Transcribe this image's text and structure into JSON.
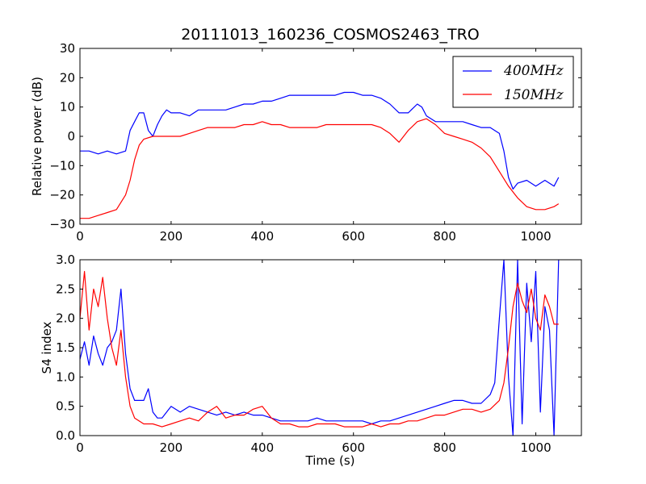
{
  "chart_data": [
    {
      "type": "line",
      "title": "20111013_160236_COSMOS2463_TRO",
      "xlabel": "",
      "ylabel": "Relative power (dB)",
      "xlim": [
        0,
        1100
      ],
      "ylim": [
        -30,
        30
      ],
      "xticks": [
        0,
        200,
        400,
        600,
        800,
        1000
      ],
      "yticks": [
        -30,
        -20,
        -10,
        0,
        10,
        20,
        30
      ],
      "legend": "top-right",
      "series": [
        {
          "name": "400MHz",
          "legend_label": "400MHz",
          "color": "#0000ff",
          "x": [
            0,
            20,
            40,
            60,
            80,
            100,
            110,
            120,
            130,
            140,
            150,
            160,
            170,
            180,
            190,
            200,
            220,
            240,
            260,
            280,
            300,
            320,
            340,
            360,
            380,
            400,
            420,
            440,
            460,
            480,
            500,
            520,
            540,
            560,
            580,
            600,
            620,
            640,
            660,
            680,
            700,
            720,
            740,
            750,
            760,
            780,
            800,
            820,
            840,
            860,
            880,
            900,
            910,
            920,
            930,
            940,
            950,
            960,
            980,
            1000,
            1020,
            1040,
            1050
          ],
          "y": [
            -5,
            -5,
            -6,
            -5,
            -6,
            -5,
            2,
            5,
            8,
            8,
            2,
            0,
            4,
            7,
            9,
            8,
            8,
            7,
            9,
            9,
            9,
            9,
            10,
            11,
            11,
            12,
            12,
            13,
            14,
            14,
            14,
            14,
            14,
            14,
            15,
            15,
            14,
            14,
            13,
            11,
            8,
            8,
            11,
            10,
            7,
            5,
            5,
            5,
            5,
            4,
            3,
            3,
            2,
            1,
            -5,
            -14,
            -18,
            -16,
            -15,
            -17,
            -15,
            -17,
            -14
          ]
        },
        {
          "name": "150MHz",
          "legend_label": "150MHz",
          "color": "#ff0000",
          "x": [
            0,
            20,
            40,
            60,
            80,
            100,
            110,
            120,
            130,
            140,
            160,
            180,
            200,
            220,
            240,
            260,
            280,
            300,
            320,
            340,
            360,
            380,
            400,
            420,
            440,
            460,
            480,
            500,
            520,
            540,
            560,
            580,
            600,
            620,
            640,
            660,
            680,
            700,
            720,
            740,
            760,
            780,
            800,
            820,
            840,
            860,
            880,
            900,
            920,
            940,
            960,
            980,
            1000,
            1020,
            1040,
            1050
          ],
          "y": [
            -28,
            -28,
            -27,
            -26,
            -25,
            -20,
            -15,
            -8,
            -3,
            -1,
            0,
            0,
            0,
            0,
            1,
            2,
            3,
            3,
            3,
            3,
            4,
            4,
            5,
            4,
            4,
            3,
            3,
            3,
            3,
            4,
            4,
            4,
            4,
            4,
            4,
            3,
            1,
            -2,
            2,
            5,
            6,
            4,
            1,
            0,
            -1,
            -2,
            -4,
            -7,
            -12,
            -17,
            -21,
            -24,
            -25,
            -25,
            -24,
            -23
          ]
        }
      ]
    },
    {
      "type": "line",
      "title": "",
      "xlabel": "Time (s)",
      "ylabel": "S4 index",
      "xlim": [
        0,
        1100
      ],
      "ylim": [
        0,
        3
      ],
      "xticks": [
        0,
        200,
        400,
        600,
        800,
        1000
      ],
      "yticks": [
        0.0,
        0.5,
        1.0,
        1.5,
        2.0,
        2.5,
        3.0
      ],
      "series": [
        {
          "name": "400MHz",
          "color": "#0000ff",
          "x": [
            0,
            10,
            20,
            30,
            40,
            50,
            60,
            70,
            80,
            90,
            100,
            110,
            120,
            140,
            150,
            160,
            170,
            180,
            200,
            220,
            240,
            260,
            280,
            300,
            320,
            340,
            360,
            380,
            400,
            420,
            440,
            460,
            480,
            500,
            520,
            540,
            560,
            580,
            600,
            620,
            640,
            660,
            680,
            700,
            720,
            740,
            760,
            780,
            800,
            820,
            840,
            860,
            880,
            900,
            910,
            920,
            930,
            940,
            950,
            960,
            970,
            980,
            990,
            1000,
            1010,
            1020,
            1030,
            1040,
            1050
          ],
          "y": [
            1.3,
            1.6,
            1.2,
            1.7,
            1.4,
            1.2,
            1.5,
            1.6,
            1.8,
            2.5,
            1.4,
            0.8,
            0.6,
            0.6,
            0.8,
            0.4,
            0.3,
            0.3,
            0.5,
            0.4,
            0.5,
            0.45,
            0.4,
            0.35,
            0.4,
            0.35,
            0.4,
            0.35,
            0.35,
            0.3,
            0.25,
            0.25,
            0.25,
            0.25,
            0.3,
            0.25,
            0.25,
            0.25,
            0.25,
            0.25,
            0.2,
            0.25,
            0.25,
            0.3,
            0.35,
            0.4,
            0.45,
            0.5,
            0.55,
            0.6,
            0.6,
            0.55,
            0.55,
            0.7,
            0.9,
            2.0,
            3.0,
            1.0,
            0.0,
            3.0,
            0.2,
            2.6,
            1.6,
            2.8,
            0.4,
            2.2,
            1.8,
            0.0,
            3.0
          ]
        },
        {
          "name": "150MHz",
          "color": "#ff0000",
          "x": [
            0,
            10,
            20,
            30,
            40,
            50,
            60,
            70,
            80,
            90,
            100,
            110,
            120,
            140,
            160,
            180,
            200,
            220,
            240,
            260,
            280,
            300,
            320,
            340,
            360,
            380,
            400,
            420,
            440,
            460,
            480,
            500,
            520,
            540,
            560,
            580,
            600,
            620,
            640,
            660,
            680,
            700,
            720,
            740,
            760,
            780,
            800,
            820,
            840,
            860,
            880,
            900,
            920,
            930,
            940,
            950,
            960,
            970,
            980,
            990,
            1000,
            1010,
            1020,
            1030,
            1040,
            1050
          ],
          "y": [
            2.0,
            2.8,
            1.8,
            2.5,
            2.2,
            2.7,
            2.0,
            1.5,
            1.2,
            1.8,
            1.0,
            0.5,
            0.3,
            0.2,
            0.2,
            0.15,
            0.2,
            0.25,
            0.3,
            0.25,
            0.4,
            0.5,
            0.3,
            0.35,
            0.35,
            0.45,
            0.5,
            0.3,
            0.2,
            0.2,
            0.15,
            0.15,
            0.2,
            0.2,
            0.2,
            0.15,
            0.15,
            0.15,
            0.2,
            0.15,
            0.2,
            0.2,
            0.25,
            0.25,
            0.3,
            0.35,
            0.35,
            0.4,
            0.45,
            0.45,
            0.4,
            0.45,
            0.6,
            0.9,
            1.5,
            2.2,
            2.6,
            2.3,
            2.1,
            2.5,
            2.0,
            1.8,
            2.4,
            2.2,
            1.9,
            1.9
          ]
        }
      ]
    }
  ]
}
